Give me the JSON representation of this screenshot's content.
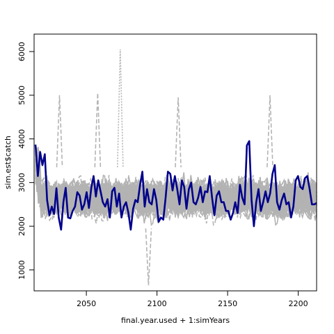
{
  "chart_data": {
    "type": "line",
    "title": "",
    "xlabel": "final.year.used + 1:simYears",
    "ylabel": "sim.est$catch",
    "xlim": [
      2013,
      2213
    ],
    "ylim": [
      520,
      6400
    ],
    "x_ticks": [
      2050,
      2100,
      2150,
      2200
    ],
    "x_tick_labels": [
      "2050",
      "2100",
      "2150",
      "2200"
    ],
    "y_ticks": [
      1000,
      2000,
      3000,
      4000,
      5000,
      6000
    ],
    "y_tick_labels": [
      "1000",
      "2000",
      "3000",
      "4000",
      "5000",
      "6000"
    ],
    "grid": false,
    "background_series": {
      "description": "many grey simulated trajectories (solid and dashed)",
      "color": "#b3b3b3",
      "count": 60,
      "envelope_low": 1050,
      "envelope_high": 4100,
      "typical_center": 2650,
      "spikes": [
        {
          "x": 2031,
          "y": 5000
        },
        {
          "x": 2058,
          "y": 5050
        },
        {
          "x": 2074,
          "y": 6050
        },
        {
          "x": 2094,
          "y": 650
        },
        {
          "x": 2115,
          "y": 4950
        },
        {
          "x": 2180,
          "y": 5000
        }
      ]
    },
    "series": [
      {
        "color": "#00008b",
        "x_start": 2014,
        "x_end": 2213,
        "values": [
          3870,
          3150,
          3700,
          3400,
          3650,
          2600,
          2250,
          2450,
          2280,
          2870,
          2200,
          1920,
          2550,
          2880,
          2200,
          2180,
          2350,
          2450,
          2780,
          2700,
          2380,
          2500,
          2780,
          2420,
          2880,
          3150,
          2680,
          3050,
          2800,
          2550,
          2450,
          2620,
          2200,
          2800,
          2880,
          2450,
          2750,
          2200,
          2450,
          2550,
          2300,
          1920,
          2400,
          2600,
          2550,
          2950,
          3250,
          2450,
          2850,
          2550,
          2500,
          2850,
          2600,
          2100,
          2200,
          2150,
          2650,
          3250,
          3200,
          2820,
          3150,
          2850,
          2500,
          3050,
          2900,
          2400,
          2850,
          3000,
          2550,
          2500,
          2650,
          2900,
          2550,
          2800,
          2780,
          3150,
          2650,
          2250,
          2700,
          2800,
          2550,
          2550,
          2350,
          2350,
          2150,
          2300,
          2550,
          2300,
          2950,
          2650,
          2500,
          3850,
          3950,
          2600,
          2000,
          2550,
          2850,
          2350,
          2550,
          2800,
          2550,
          2750,
          3200,
          3400,
          2550,
          2380,
          2600,
          2750,
          2500,
          2550,
          2200,
          2450,
          3050,
          3150,
          2900,
          2850,
          3100,
          3150,
          2850,
          2500,
          2500,
          2530
        ]
      }
    ]
  }
}
